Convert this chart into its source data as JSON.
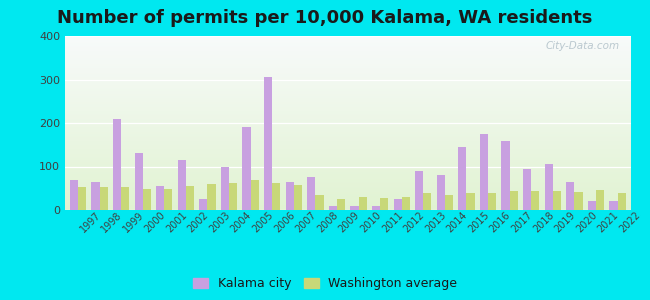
{
  "title": "Number of permits per 10,000 Kalama, WA residents",
  "years": [
    1997,
    1998,
    1999,
    2000,
    2001,
    2002,
    2003,
    2004,
    2005,
    2006,
    2007,
    2008,
    2009,
    2010,
    2011,
    2012,
    2013,
    2014,
    2015,
    2016,
    2017,
    2018,
    2019,
    2020,
    2021,
    2022
  ],
  "kalama": [
    70,
    65,
    210,
    130,
    55,
    115,
    25,
    100,
    190,
    305,
    65,
    75,
    10,
    10,
    10,
    25,
    90,
    80,
    145,
    175,
    158,
    95,
    105,
    65,
    20,
    20
  ],
  "wa_avg": [
    52,
    52,
    52,
    48,
    48,
    55,
    60,
    62,
    68,
    62,
    58,
    35,
    25,
    30,
    28,
    30,
    38,
    35,
    38,
    40,
    43,
    43,
    43,
    42,
    45,
    40
  ],
  "kalama_color": "#c8a0e0",
  "wa_color": "#c8d878",
  "outer_bg": "#00e8f0",
  "ylim": [
    0,
    400
  ],
  "yticks": [
    0,
    100,
    200,
    300,
    400
  ],
  "title_fontsize": 13,
  "watermark": "City-Data.com",
  "legend_kalama": "Kalama city",
  "legend_wa": "Washington average"
}
